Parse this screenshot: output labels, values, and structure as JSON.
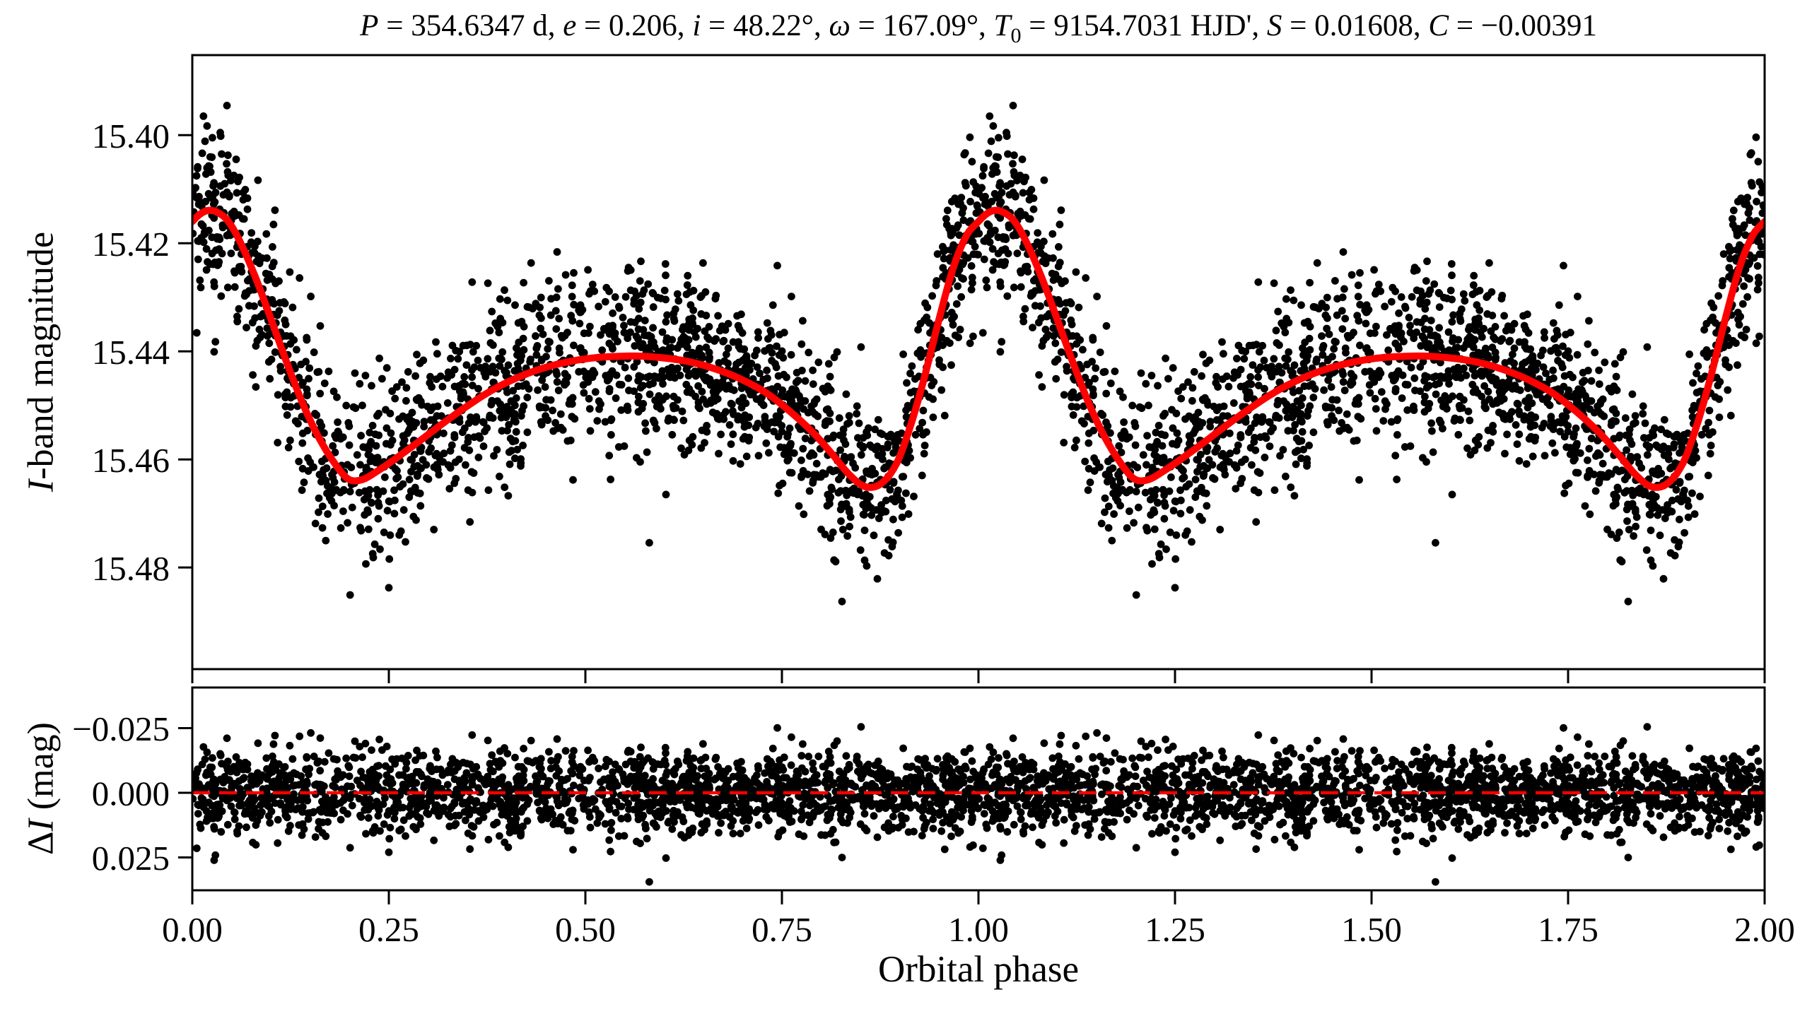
{
  "title": {
    "plain": "P = 354.6347 d, e = 0.206, i = 48.22°, ω = 167.09°, T0 = 9154.7031 HJD', S = 0.01608, C = −0.00391",
    "segments": [
      {
        "text": "P",
        "italic": true
      },
      {
        "text": " = 354.6347 d, "
      },
      {
        "text": "e",
        "italic": true
      },
      {
        "text": " = 0.206, "
      },
      {
        "text": "i",
        "italic": true
      },
      {
        "text": " = 48.22°, "
      },
      {
        "text": "ω",
        "italic": true
      },
      {
        "text": " = 167.09°, "
      },
      {
        "text": "T",
        "italic": true
      },
      {
        "text": "0",
        "sub": true
      },
      {
        "text": " = 9154.7031 HJD', "
      },
      {
        "text": "S",
        "italic": true
      },
      {
        "text": " = 0.01608, "
      },
      {
        "text": "C",
        "italic": true
      },
      {
        "text": " = −0.00391"
      }
    ]
  },
  "chart_data": {
    "type": "scatter",
    "x_axis": {
      "label": "Orbital phase",
      "lim": [
        0.0,
        2.0
      ],
      "ticks": [
        0.0,
        0.25,
        0.5,
        0.75,
        1.0,
        1.25,
        1.5,
        1.75,
        2.0
      ],
      "tick_labels": [
        "0.00",
        "0.25",
        "0.50",
        "0.75",
        "1.00",
        "1.25",
        "1.50",
        "1.75",
        "2.00"
      ]
    },
    "panels": [
      {
        "name": "light_curve",
        "y_axis": {
          "label_plain": "I-band magnitude",
          "label_segments": [
            {
              "text": "I",
              "italic": true
            },
            {
              "text": "-band magnitude"
            }
          ],
          "lim": [
            15.3852,
            15.4988
          ],
          "inverted": true,
          "ticks": [
            15.4,
            15.42,
            15.44,
            15.46,
            15.48
          ],
          "tick_labels": [
            "15.40",
            "15.42",
            "15.44",
            "15.46",
            "15.48"
          ]
        },
        "model_curve": {
          "color": "#ff0000",
          "line_width": 10,
          "phase": [
            0.0,
            0.01,
            0.021,
            0.032,
            0.045,
            0.06,
            0.08,
            0.1,
            0.12,
            0.14,
            0.16,
            0.18,
            0.198,
            0.215,
            0.235,
            0.26,
            0.29,
            0.32,
            0.35,
            0.38,
            0.41,
            0.44,
            0.47,
            0.5,
            0.53,
            0.57,
            0.61,
            0.64,
            0.67,
            0.7,
            0.73,
            0.76,
            0.79,
            0.815,
            0.835,
            0.855,
            0.875,
            0.895,
            0.912,
            0.93,
            0.95,
            0.968,
            0.985,
            1.0
          ],
          "mag": [
            15.416,
            15.4146,
            15.4139,
            15.4143,
            15.4158,
            15.4195,
            15.4262,
            15.434,
            15.442,
            15.4495,
            15.4557,
            15.4605,
            15.4636,
            15.4638,
            15.4622,
            15.4597,
            15.4565,
            15.4532,
            15.4501,
            15.4473,
            15.4451,
            15.4434,
            15.4422,
            15.4414,
            15.441,
            15.4409,
            15.4414,
            15.4422,
            15.4435,
            15.4453,
            15.4477,
            15.4511,
            15.4551,
            15.4592,
            15.4627,
            15.465,
            15.4646,
            15.461,
            15.4545,
            15.4455,
            15.434,
            15.4245,
            15.4185,
            15.416
          ],
          "peak_phase": 1.021,
          "peak_mag": 15.414,
          "dip1": {
            "phase": 0.2,
            "mag": 15.4638
          },
          "dip2": {
            "phase": 0.855,
            "mag": 15.465
          },
          "secondary_max": {
            "phase": 0.57,
            "mag": 15.441
          }
        },
        "scatter": {
          "color": "#000000",
          "marker_radius": 5.4,
          "n_points_per_cycle": 1900,
          "duplicated_cycles": 2,
          "noise_sigma_mag": 0.0078,
          "outlier_fraction": 0.025,
          "outlier_sigma_mag": 0.0135,
          "seed": 20210915,
          "phase_density_weights": [
            {
              "from": 0.0,
              "to": 0.08,
              "w": 1.1
            },
            {
              "from": 0.08,
              "to": 0.25,
              "w": 0.95
            },
            {
              "from": 0.25,
              "to": 0.45,
              "w": 1.0
            },
            {
              "from": 0.45,
              "to": 0.53,
              "w": 0.8
            },
            {
              "from": 0.53,
              "to": 0.78,
              "w": 1.35
            },
            {
              "from": 0.78,
              "to": 0.95,
              "w": 1.05
            },
            {
              "from": 0.95,
              "to": 1.0,
              "w": 1.1
            }
          ],
          "w_max": 1.35
        }
      },
      {
        "name": "residuals",
        "y_axis": {
          "label_plain": "ΔI (mag)",
          "label_segments": [
            {
              "text": "Δ"
            },
            {
              "text": "I",
              "italic": true
            },
            {
              "text": " (mag)"
            }
          ],
          "lim": [
            -0.0407,
            0.0377
          ],
          "inverted": true,
          "ticks": [
            -0.025,
            0.0,
            0.025
          ],
          "tick_labels": [
            "−0.025",
            "0.000",
            "0.025"
          ]
        },
        "zero_line": {
          "color": "#ff0000",
          "style": "dashed",
          "width": 4.5,
          "dash": [
            25,
            13
          ],
          "value": 0.0
        }
      }
    ],
    "style": {
      "background": "#ffffff",
      "spine_color": "#000000",
      "spine_width": 3,
      "tick_length": 20,
      "tick_width": 3,
      "marker_color": "#000000",
      "model_color": "#ff0000"
    }
  }
}
